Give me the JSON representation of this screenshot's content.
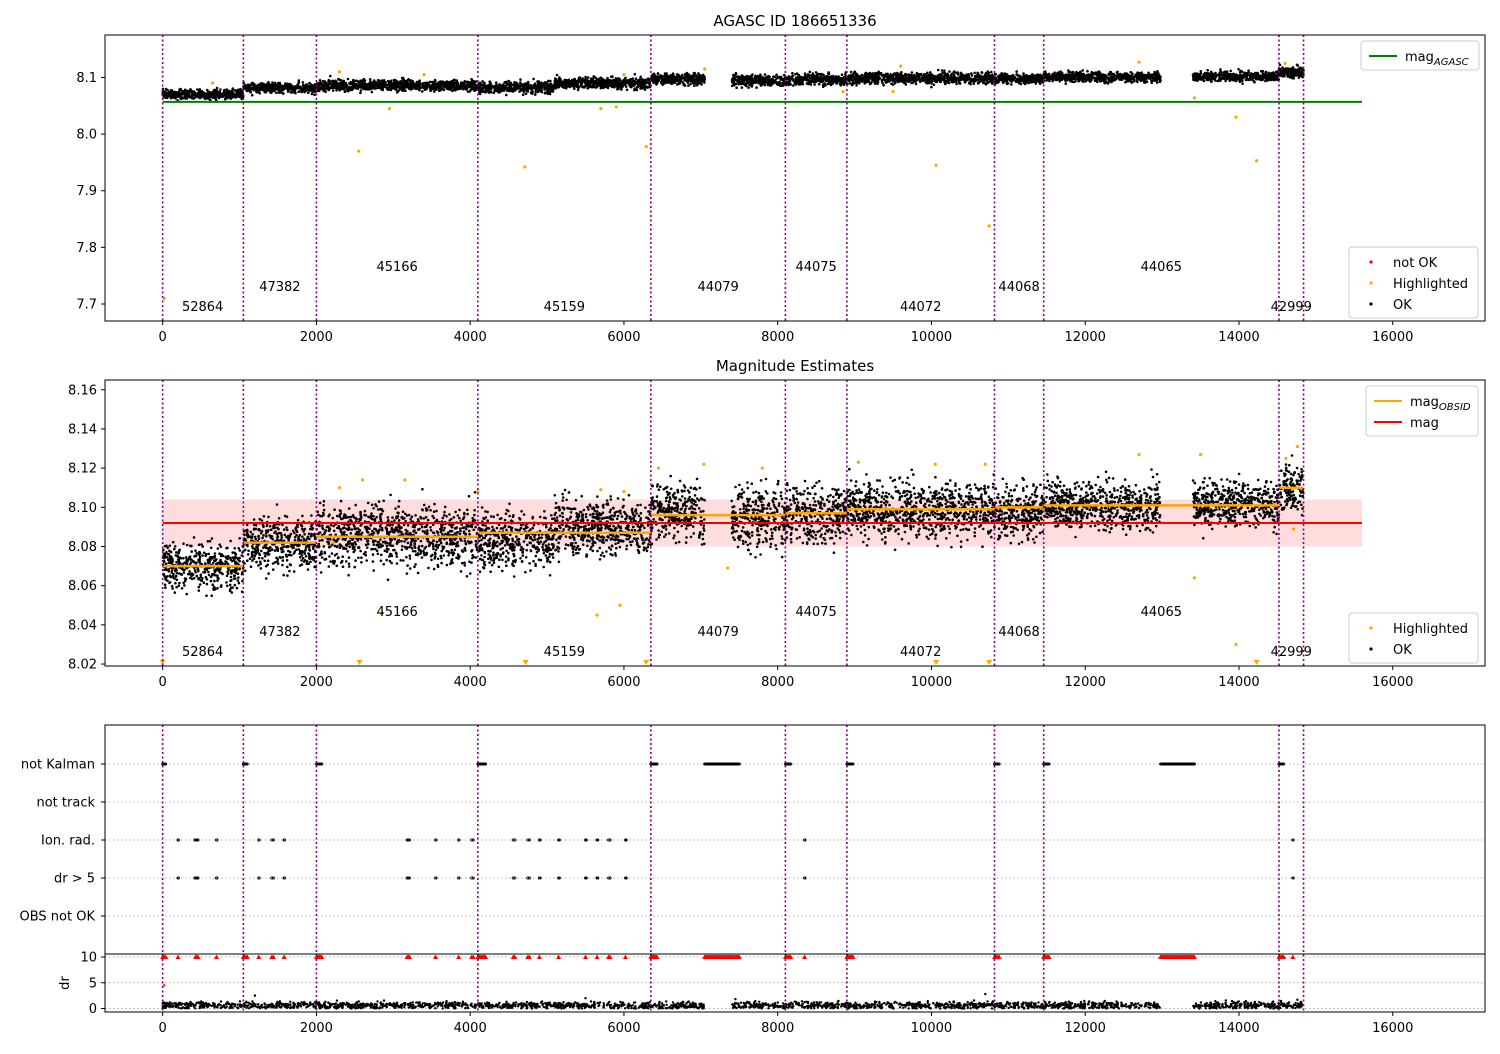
{
  "colors": {
    "ok": "#000000",
    "highlighted": "#ffa500",
    "not_ok": "#ff0000",
    "agasc_line": "#008000",
    "obsid_line": "#ffa500",
    "mag_line": "#ff0000",
    "mag_band": "#ffdddd",
    "obsid_band": "#ffe7b8",
    "obs_boundary": "#800080",
    "grid": "#b0b0b0"
  },
  "obs_boundaries": [
    0,
    1050,
    2000,
    4100,
    6350,
    8100,
    8900,
    10820,
    11460,
    14520,
    14840
  ],
  "obsid_labels": [
    {
      "id": "52864",
      "x": 520,
      "tier": 0
    },
    {
      "id": "47382",
      "x": 1525,
      "tier": 1
    },
    {
      "id": "45166",
      "x": 3050,
      "tier": 2
    },
    {
      "id": "45159",
      "x": 5225,
      "tier": 0
    },
    {
      "id": "44079",
      "x": 7225,
      "tier": 1
    },
    {
      "id": "44075",
      "x": 8500,
      "tier": 2
    },
    {
      "id": "44072",
      "x": 9860,
      "tier": 0
    },
    {
      "id": "44068",
      "x": 11140,
      "tier": 1
    },
    {
      "id": "44065",
      "x": 12990,
      "tier": 2
    },
    {
      "id": "42999",
      "x": 14680,
      "tier": 0
    }
  ],
  "chart_data": [
    {
      "type": "scatter",
      "title": "AGASC ID 186651336",
      "xlim": [
        -750,
        17200
      ],
      "ylim": [
        7.67,
        8.175
      ],
      "x_ticks": [
        0,
        2000,
        4000,
        6000,
        8000,
        10000,
        12000,
        14000,
        16000
      ],
      "x_tick_labels": [
        "0",
        "2000",
        "4000",
        "6000",
        "8000",
        "10000",
        "12000",
        "14000",
        "16000"
      ],
      "y_ticks": [
        7.7,
        7.8,
        7.9,
        8.0,
        8.1
      ],
      "y_tick_labels": [
        "7.7",
        "7.8",
        "7.9",
        "8.0",
        "8.1"
      ],
      "legend_top": {
        "placement": "top-right",
        "entries": [
          {
            "label": "mag",
            "subscript": "AGASC",
            "kind": "line",
            "color": "agasc_line"
          }
        ]
      },
      "legend_bottom": {
        "placement": "bottom-right",
        "entries": [
          {
            "label": "not OK",
            "kind": "dot",
            "color": "not_ok"
          },
          {
            "label": "Highlighted",
            "kind": "dot",
            "color": "highlighted"
          },
          {
            "label": "OK",
            "kind": "dot",
            "color": "ok"
          }
        ]
      },
      "agasc_mag": 8.057,
      "agasc_line_x": [
        0,
        15600
      ],
      "obs_segments": [
        {
          "x": [
            0,
            1050
          ],
          "mean": 8.07,
          "spread": 0.006
        },
        {
          "x": [
            1050,
            2000
          ],
          "mean": 8.082,
          "spread": 0.006
        },
        {
          "x": [
            2000,
            4100
          ],
          "mean": 8.086,
          "spread": 0.007
        },
        {
          "x": [
            4100,
            5100
          ],
          "mean": 8.083,
          "spread": 0.007
        },
        {
          "x": [
            5100,
            6350
          ],
          "mean": 8.09,
          "spread": 0.007
        },
        {
          "x": [
            6350,
            7050
          ],
          "mean": 8.098,
          "spread": 0.007
        },
        {
          "x": [
            7400,
            8100
          ],
          "mean": 8.095,
          "spread": 0.007
        },
        {
          "x": [
            8100,
            8900
          ],
          "mean": 8.097,
          "spread": 0.007
        },
        {
          "x": [
            8900,
            10820
          ],
          "mean": 8.099,
          "spread": 0.007
        },
        {
          "x": [
            10820,
            11460
          ],
          "mean": 8.098,
          "spread": 0.006
        },
        {
          "x": [
            11460,
            12980
          ],
          "mean": 8.101,
          "spread": 0.006
        },
        {
          "x": [
            13400,
            14520
          ],
          "mean": 8.102,
          "spread": 0.006
        },
        {
          "x": [
            14520,
            14840
          ],
          "mean": 8.11,
          "spread": 0.007
        }
      ],
      "highlighted_points": [
        [
          20,
          7.71
        ],
        [
          2550,
          7.97
        ],
        [
          4710,
          7.942
        ],
        [
          6290,
          7.978
        ],
        [
          10060,
          7.945
        ],
        [
          10750,
          7.838
        ],
        [
          13960,
          8.03
        ],
        [
          14230,
          7.953
        ],
        [
          2950,
          8.045
        ],
        [
          5700,
          8.045
        ],
        [
          5900,
          8.048
        ],
        [
          13420,
          8.064
        ],
        [
          650,
          8.09
        ],
        [
          2300,
          8.11
        ],
        [
          3400,
          8.105
        ],
        [
          6000,
          8.105
        ],
        [
          7050,
          8.115
        ],
        [
          9600,
          8.12
        ],
        [
          12700,
          8.127
        ],
        [
          14600,
          8.125
        ],
        [
          8850,
          8.075
        ],
        [
          9500,
          8.075
        ]
      ]
    },
    {
      "type": "scatter",
      "title": "Magnitude Estimates",
      "xlim": [
        -750,
        17200
      ],
      "ylim": [
        8.019,
        8.165
      ],
      "x_ticks": [
        0,
        2000,
        4000,
        6000,
        8000,
        10000,
        12000,
        14000,
        16000
      ],
      "x_tick_labels": [
        "0",
        "2000",
        "4000",
        "6000",
        "8000",
        "10000",
        "12000",
        "14000",
        "16000"
      ],
      "y_ticks": [
        8.02,
        8.04,
        8.06,
        8.08,
        8.1,
        8.12,
        8.14,
        8.16
      ],
      "y_tick_labels": [
        "8.02",
        "8.04",
        "8.06",
        "8.08",
        "8.10",
        "8.12",
        "8.14",
        "8.16"
      ],
      "legend_top": {
        "placement": "top-right",
        "entries": [
          {
            "label": "mag",
            "subscript": "OBSID",
            "kind": "line",
            "color": "obsid_line"
          },
          {
            "label": "mag",
            "subscript": "",
            "kind": "line",
            "color": "mag_line"
          }
        ]
      },
      "legend_bottom": {
        "placement": "bottom-right",
        "entries": [
          {
            "label": "Highlighted",
            "kind": "dot",
            "color": "highlighted"
          },
          {
            "label": "OK",
            "kind": "dot",
            "color": "ok"
          }
        ]
      },
      "mag": 8.092,
      "mag_band": [
        8.08,
        8.104
      ],
      "mag_line_x": [
        0,
        15600
      ],
      "obsid_mags": [
        {
          "x": [
            0,
            1050
          ],
          "mag": 8.07
        },
        {
          "x": [
            1050,
            2000
          ],
          "mag": 8.082
        },
        {
          "x": [
            2000,
            4100
          ],
          "mag": 8.085
        },
        {
          "x": [
            4100,
            6350
          ],
          "mag": 8.087
        },
        {
          "x": [
            6350,
            8100
          ],
          "mag": 8.096
        },
        {
          "x": [
            8100,
            8900
          ],
          "mag": 8.097
        },
        {
          "x": [
            8900,
            10820
          ],
          "mag": 8.099
        },
        {
          "x": [
            10820,
            11460
          ],
          "mag": 8.1
        },
        {
          "x": [
            11460,
            14520
          ],
          "mag": 8.101
        },
        {
          "x": [
            14520,
            14840
          ],
          "mag": 8.11
        }
      ],
      "obs_segments": [
        {
          "x": [
            0,
            1050
          ],
          "mean": 8.07,
          "spread": 0.008
        },
        {
          "x": [
            1050,
            2000
          ],
          "mean": 8.082,
          "spread": 0.009
        },
        {
          "x": [
            2000,
            4100
          ],
          "mean": 8.086,
          "spread": 0.011
        },
        {
          "x": [
            4100,
            5100
          ],
          "mean": 8.083,
          "spread": 0.01
        },
        {
          "x": [
            5100,
            6350
          ],
          "mean": 8.09,
          "spread": 0.01
        },
        {
          "x": [
            6350,
            7050
          ],
          "mean": 8.098,
          "spread": 0.01
        },
        {
          "x": [
            7400,
            8100
          ],
          "mean": 8.095,
          "spread": 0.011
        },
        {
          "x": [
            8100,
            8900
          ],
          "mean": 8.097,
          "spread": 0.01
        },
        {
          "x": [
            8900,
            10820
          ],
          "mean": 8.099,
          "spread": 0.01
        },
        {
          "x": [
            10820,
            11460
          ],
          "mean": 8.098,
          "spread": 0.009
        },
        {
          "x": [
            11460,
            12980
          ],
          "mean": 8.101,
          "spread": 0.009
        },
        {
          "x": [
            13400,
            14520
          ],
          "mean": 8.102,
          "spread": 0.008
        },
        {
          "x": [
            14520,
            14840
          ],
          "mean": 8.11,
          "spread": 0.009
        }
      ],
      "highlighted_points": [
        [
          2300,
          8.11
        ],
        [
          2600,
          8.114
        ],
        [
          3150,
          8.114
        ],
        [
          4100,
          8.108
        ],
        [
          5700,
          8.109
        ],
        [
          6000,
          8.108
        ],
        [
          6450,
          8.12
        ],
        [
          7040,
          8.122
        ],
        [
          7800,
          8.12
        ],
        [
          9050,
          8.123
        ],
        [
          10050,
          8.122
        ],
        [
          10700,
          8.122
        ],
        [
          12700,
          8.127
        ],
        [
          13500,
          8.127
        ],
        [
          14610,
          8.125
        ],
        [
          14760,
          8.131
        ],
        [
          2850,
          8.046
        ],
        [
          5650,
          8.045
        ],
        [
          5950,
          8.05
        ],
        [
          13420,
          8.064
        ],
        [
          13960,
          8.03
        ],
        [
          14710,
          8.089
        ],
        [
          7350,
          8.069
        ],
        [
          2220,
          8.082
        ]
      ],
      "highlighted_markers_at_floor": [
        0,
        2560,
        4720,
        6290,
        10060,
        10750,
        14230
      ]
    },
    {
      "type": "scatter",
      "title": "",
      "xlim": [
        -750,
        17200
      ],
      "x_ticks": [
        0,
        2000,
        4000,
        6000,
        8000,
        10000,
        12000,
        14000,
        16000
      ],
      "x_tick_labels": [
        "0",
        "2000",
        "4000",
        "6000",
        "8000",
        "10000",
        "12000",
        "14000",
        "16000"
      ],
      "flag_rows": [
        "not Kalman",
        "not track",
        "Ion. rad.",
        "dr > 5",
        "OBS not OK"
      ],
      "dr_ylabel": "dr",
      "dr_ticks": [
        0,
        5,
        10
      ],
      "dr_tick_labels": [
        "0",
        "5",
        "10"
      ],
      "flags": {
        "not Kalman": [
          [
            0,
            40
          ],
          [
            1050,
            1100
          ],
          [
            2000,
            2070
          ],
          [
            4100,
            4200
          ],
          [
            6350,
            6430
          ],
          [
            7050,
            7500
          ],
          [
            8100,
            8170
          ],
          [
            8900,
            8980
          ],
          [
            10820,
            10880
          ],
          [
            11460,
            11530
          ],
          [
            12980,
            13420
          ],
          [
            14520,
            14580
          ]
        ],
        "not track": [],
        "Ion. rad.": [
          [
            200,
            205
          ],
          [
            420,
            460
          ],
          [
            700,
            705
          ],
          [
            1250,
            1255
          ],
          [
            1420,
            1440
          ],
          [
            1580,
            1585
          ],
          [
            3180,
            3210
          ],
          [
            3550,
            3555
          ],
          [
            3850,
            3855
          ],
          [
            4020,
            4040
          ],
          [
            4560,
            4580
          ],
          [
            4750,
            4770
          ],
          [
            4900,
            4910
          ],
          [
            5150,
            5160
          ],
          [
            5500,
            5510
          ],
          [
            5650,
            5660
          ],
          [
            5800,
            5820
          ],
          [
            6020,
            6030
          ],
          [
            8350,
            8355
          ],
          [
            14700,
            14705
          ]
        ],
        "dr > 5": [
          [
            200,
            205
          ],
          [
            420,
            460
          ],
          [
            700,
            705
          ],
          [
            1250,
            1255
          ],
          [
            1420,
            1440
          ],
          [
            1580,
            1585
          ],
          [
            3180,
            3210
          ],
          [
            3550,
            3555
          ],
          [
            3850,
            3855
          ],
          [
            4020,
            4040
          ],
          [
            4560,
            4580
          ],
          [
            4750,
            4770
          ],
          [
            4900,
            4910
          ],
          [
            5150,
            5160
          ],
          [
            5500,
            5510
          ],
          [
            5650,
            5660
          ],
          [
            5800,
            5820
          ],
          [
            6020,
            6030
          ],
          [
            8350,
            8355
          ],
          [
            14700,
            14705
          ]
        ],
        "OBS not OK": []
      },
      "dr_capped_points": [
        [
          0,
          40
        ],
        [
          1050,
          1100
        ],
        [
          2000,
          2070
        ],
        [
          3180,
          3210
        ],
        [
          4100,
          4200
        ],
        [
          6350,
          6430
        ],
        [
          7050,
          7500
        ],
        [
          8100,
          8170
        ],
        [
          8900,
          8980
        ],
        [
          10820,
          10880
        ],
        [
          11460,
          11530
        ],
        [
          12980,
          13420
        ],
        [
          14520,
          14580
        ],
        [
          200,
          205
        ],
        [
          430,
          460
        ],
        [
          700,
          705
        ],
        [
          1250,
          1255
        ],
        [
          1420,
          1440
        ],
        [
          1580,
          1585
        ],
        [
          3550,
          3555
        ],
        [
          3850,
          3855
        ],
        [
          4020,
          4040
        ],
        [
          4560,
          4580
        ],
        [
          4750,
          4770
        ],
        [
          4900,
          4910
        ],
        [
          5150,
          5160
        ],
        [
          5500,
          5510
        ],
        [
          5650,
          5660
        ],
        [
          5800,
          5820
        ],
        [
          6020,
          6030
        ],
        [
          8350,
          8355
        ],
        [
          14700,
          14705
        ]
      ]
    }
  ]
}
